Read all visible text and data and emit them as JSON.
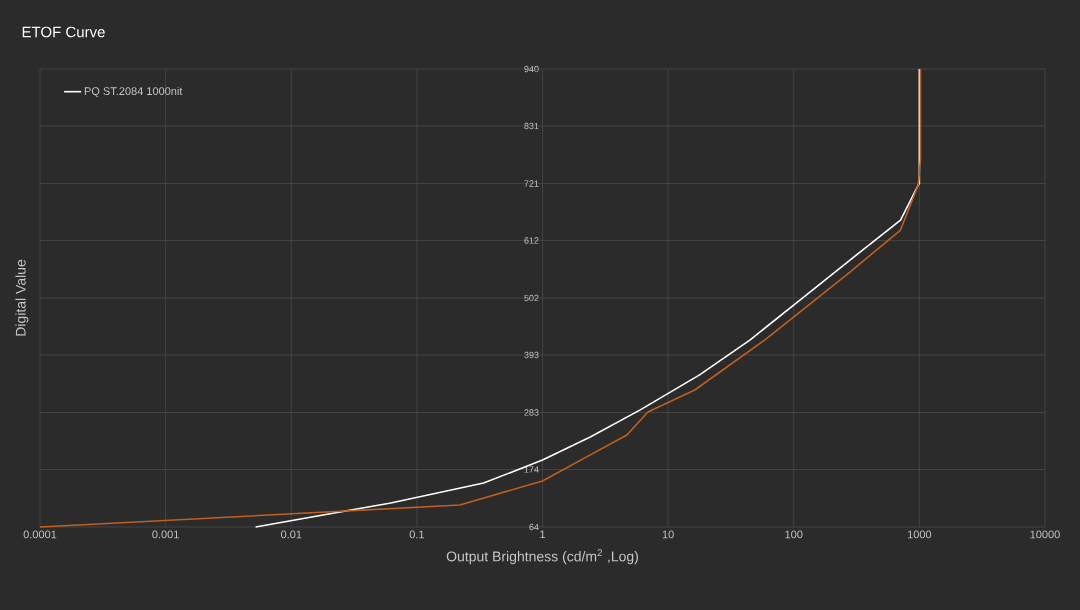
{
  "chart_data": {
    "type": "line",
    "title": "ETOF Curve",
    "xlabel": "Output Brightness (cd/m$^{2}$ ,Log)",
    "ylabel": "Digital Value",
    "log": "x",
    "grid": true,
    "legend": "top left",
    "marker": "none",
    "line_style": "solid",
    "xlim": [
      0.0001,
      10000
    ],
    "xticks": [
      0.0001,
      0.001,
      0.01,
      0.1,
      1,
      10,
      100,
      1000,
      10000
    ],
    "ylim": [
      64,
      940
    ],
    "yticks": [
      64,
      174,
      283,
      393,
      502,
      612,
      721,
      831,
      940
    ],
    "series": [
      {
        "name": "PQ ST.2084 1000nit",
        "color": "#ffffff",
        "x": [
          0.0052,
          0.062,
          0.34,
          1,
          2.4,
          6.0,
          17.8,
          45,
          112,
          282,
          708,
          980,
          1000,
          1000
        ],
        "values": [
          64,
          110,
          148,
          192,
          236,
          288,
          355,
          422,
          498,
          575,
          651,
          718,
          721,
          940
        ]
      },
      {
        "color": "#c0601e",
        "x": [
          0.0001,
          0.22,
          1,
          2.4,
          4.7,
          6.9,
          16.3,
          59,
          282,
          708,
          980,
          1020,
          1020
        ],
        "values": [
          64,
          106,
          152,
          202,
          240,
          284,
          326,
          422,
          552,
          632,
          718,
          766,
          940
        ]
      }
    ]
  }
}
